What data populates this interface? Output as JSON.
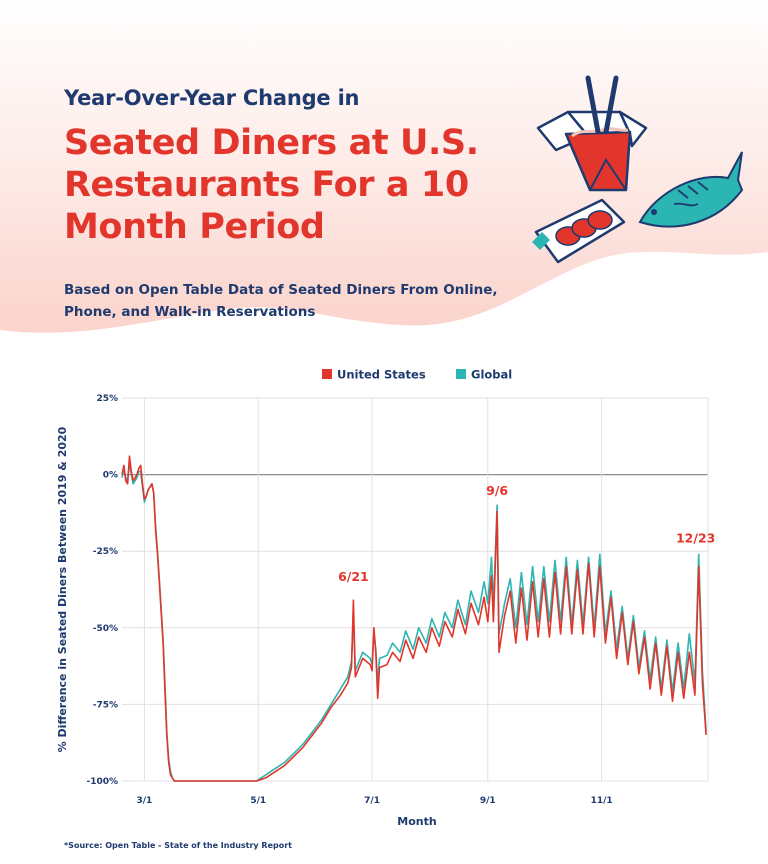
{
  "header": {
    "kicker": "Year-Over-Year Change in",
    "title": "Seated Diners at U.S. Restaurants For a 10 Month Period",
    "subtitle": "Based on Open Table Data of Seated Diners From Online, Phone, and Walk-in Reservations"
  },
  "source": "*Source: Open Table - State of the Industry Report",
  "illustration": {
    "icons": [
      "takeout-box-icon",
      "chopsticks-icon",
      "fish-icon",
      "sushi-plate-icon"
    ]
  },
  "colors": {
    "us": "#e2352b",
    "global": "#2bb5b3",
    "navy": "#1f3a6e",
    "wave": "#fde6e2"
  },
  "chart_data": {
    "type": "line",
    "xlabel": "Month",
    "ylabel": "% Difference in Seated Diners Between 2019 & 2020",
    "x_tick_labels": [
      "3/1",
      "5/1",
      "7/1",
      "9/1",
      "11/1"
    ],
    "y_tick_labels": [
      "25%",
      "0%",
      "-25%",
      "-50%",
      "-75%",
      "-100%"
    ],
    "y_ticks": [
      25,
      0,
      -25,
      -50,
      -75,
      -100
    ],
    "ylim": [
      -100,
      25
    ],
    "x_range": [
      "2020-02-18",
      "2020-12-28"
    ],
    "grid": true,
    "legend_position": "top-center",
    "series": [
      {
        "name": "United States",
        "points": [
          [
            "2020-02-18",
            0
          ],
          [
            "2020-02-19",
            3
          ],
          [
            "2020-02-20",
            -2
          ],
          [
            "2020-02-21",
            -3
          ],
          [
            "2020-02-22",
            6
          ],
          [
            "2020-02-23",
            1
          ],
          [
            "2020-02-24",
            -2
          ],
          [
            "2020-02-25",
            -1
          ],
          [
            "2020-02-26",
            0
          ],
          [
            "2020-02-27",
            2
          ],
          [
            "2020-02-28",
            3
          ],
          [
            "2020-02-29",
            -3
          ],
          [
            "2020-03-01",
            -8
          ],
          [
            "2020-03-02",
            -7
          ],
          [
            "2020-03-03",
            -5
          ],
          [
            "2020-03-04",
            -4
          ],
          [
            "2020-03-05",
            -3
          ],
          [
            "2020-03-06",
            -6
          ],
          [
            "2020-03-07",
            -18
          ],
          [
            "2020-03-08",
            -26
          ],
          [
            "2020-03-09",
            -35
          ],
          [
            "2020-03-10",
            -45
          ],
          [
            "2020-03-11",
            -55
          ],
          [
            "2020-03-12",
            -70
          ],
          [
            "2020-03-13",
            -85
          ],
          [
            "2020-03-14",
            -94
          ],
          [
            "2020-03-15",
            -98
          ],
          [
            "2020-03-16",
            -99
          ],
          [
            "2020-03-17",
            -100
          ],
          [
            "2020-04-30",
            -100
          ],
          [
            "2020-05-05",
            -99
          ],
          [
            "2020-05-10",
            -97
          ],
          [
            "2020-05-15",
            -95
          ],
          [
            "2020-05-20",
            -92
          ],
          [
            "2020-05-25",
            -89
          ],
          [
            "2020-05-30",
            -85
          ],
          [
            "2020-06-04",
            -81
          ],
          [
            "2020-06-09",
            -76
          ],
          [
            "2020-06-14",
            -72
          ],
          [
            "2020-06-18",
            -68
          ],
          [
            "2020-06-20",
            -63
          ],
          [
            "2020-06-21",
            -41
          ],
          [
            "2020-06-22",
            -66
          ],
          [
            "2020-06-26",
            -60
          ],
          [
            "2020-06-30",
            -62
          ],
          [
            "2020-07-01",
            -64
          ],
          [
            "2020-07-02",
            -50
          ],
          [
            "2020-07-03",
            -58
          ],
          [
            "2020-07-04",
            -73
          ],
          [
            "2020-07-05",
            -63
          ],
          [
            "2020-07-09",
            -62
          ],
          [
            "2020-07-12",
            -58
          ],
          [
            "2020-07-16",
            -61
          ],
          [
            "2020-07-19",
            -54
          ],
          [
            "2020-07-23",
            -60
          ],
          [
            "2020-07-26",
            -53
          ],
          [
            "2020-07-30",
            -58
          ],
          [
            "2020-08-02",
            -50
          ],
          [
            "2020-08-06",
            -56
          ],
          [
            "2020-08-09",
            -48
          ],
          [
            "2020-08-13",
            -53
          ],
          [
            "2020-08-16",
            -44
          ],
          [
            "2020-08-20",
            -52
          ],
          [
            "2020-08-23",
            -42
          ],
          [
            "2020-08-27",
            -49
          ],
          [
            "2020-08-30",
            -40
          ],
          [
            "2020-09-01",
            -48
          ],
          [
            "2020-09-03",
            -33
          ],
          [
            "2020-09-04",
            -48
          ],
          [
            "2020-09-06",
            -12
          ],
          [
            "2020-09-07",
            -58
          ],
          [
            "2020-09-10",
            -46
          ],
          [
            "2020-09-13",
            -38
          ],
          [
            "2020-09-16",
            -55
          ],
          [
            "2020-09-19",
            -37
          ],
          [
            "2020-09-22",
            -54
          ],
          [
            "2020-09-25",
            -35
          ],
          [
            "2020-09-28",
            -53
          ],
          [
            "2020-10-01",
            -34
          ],
          [
            "2020-10-04",
            -53
          ],
          [
            "2020-10-07",
            -32
          ],
          [
            "2020-10-10",
            -52
          ],
          [
            "2020-10-13",
            -30
          ],
          [
            "2020-10-16",
            -52
          ],
          [
            "2020-10-19",
            -31
          ],
          [
            "2020-10-22",
            -52
          ],
          [
            "2020-10-25",
            -29
          ],
          [
            "2020-10-28",
            -53
          ],
          [
            "2020-10-31",
            -30
          ],
          [
            "2020-11-03",
            -55
          ],
          [
            "2020-11-06",
            -40
          ],
          [
            "2020-11-09",
            -60
          ],
          [
            "2020-11-12",
            -45
          ],
          [
            "2020-11-15",
            -62
          ],
          [
            "2020-11-18",
            -48
          ],
          [
            "2020-11-21",
            -65
          ],
          [
            "2020-11-24",
            -53
          ],
          [
            "2020-11-27",
            -70
          ],
          [
            "2020-11-30",
            -55
          ],
          [
            "2020-12-03",
            -72
          ],
          [
            "2020-12-06",
            -56
          ],
          [
            "2020-12-09",
            -74
          ],
          [
            "2020-12-12",
            -58
          ],
          [
            "2020-12-15",
            -73
          ],
          [
            "2020-12-18",
            -58
          ],
          [
            "2020-12-21",
            -72
          ],
          [
            "2020-12-23",
            -30
          ],
          [
            "2020-12-25",
            -68
          ],
          [
            "2020-12-27",
            -85
          ]
        ]
      },
      {
        "name": "Global",
        "points": [
          [
            "2020-02-18",
            -1
          ],
          [
            "2020-02-19",
            2
          ],
          [
            "2020-02-20",
            -1
          ],
          [
            "2020-02-21",
            -2
          ],
          [
            "2020-02-22",
            4
          ],
          [
            "2020-02-23",
            0
          ],
          [
            "2020-02-24",
            -3
          ],
          [
            "2020-02-25",
            -2
          ],
          [
            "2020-02-26",
            -1
          ],
          [
            "2020-02-27",
            1
          ],
          [
            "2020-02-28",
            1
          ],
          [
            "2020-02-29",
            -4
          ],
          [
            "2020-03-01",
            -9
          ],
          [
            "2020-03-02",
            -7
          ],
          [
            "2020-03-03",
            -5
          ],
          [
            "2020-03-04",
            -4
          ],
          [
            "2020-03-05",
            -3
          ],
          [
            "2020-03-06",
            -6
          ],
          [
            "2020-03-07",
            -17
          ],
          [
            "2020-03-08",
            -25
          ],
          [
            "2020-03-09",
            -34
          ],
          [
            "2020-03-10",
            -44
          ],
          [
            "2020-03-11",
            -54
          ],
          [
            "2020-03-12",
            -68
          ],
          [
            "2020-03-13",
            -84
          ],
          [
            "2020-03-14",
            -93
          ],
          [
            "2020-03-15",
            -97
          ],
          [
            "2020-03-16",
            -99
          ],
          [
            "2020-03-17",
            -100
          ],
          [
            "2020-04-30",
            -100
          ],
          [
            "2020-05-05",
            -98
          ],
          [
            "2020-05-10",
            -96
          ],
          [
            "2020-05-15",
            -94
          ],
          [
            "2020-05-20",
            -91
          ],
          [
            "2020-05-25",
            -88
          ],
          [
            "2020-05-30",
            -84
          ],
          [
            "2020-06-04",
            -80
          ],
          [
            "2020-06-09",
            -75
          ],
          [
            "2020-06-14",
            -70
          ],
          [
            "2020-06-18",
            -66
          ],
          [
            "2020-06-20",
            -61
          ],
          [
            "2020-06-21",
            -46
          ],
          [
            "2020-06-22",
            -64
          ],
          [
            "2020-06-26",
            -58
          ],
          [
            "2020-06-30",
            -60
          ],
          [
            "2020-07-01",
            -62
          ],
          [
            "2020-07-02",
            -52
          ],
          [
            "2020-07-03",
            -57
          ],
          [
            "2020-07-04",
            -68
          ],
          [
            "2020-07-05",
            -60
          ],
          [
            "2020-07-09",
            -59
          ],
          [
            "2020-07-12",
            -55
          ],
          [
            "2020-07-16",
            -58
          ],
          [
            "2020-07-19",
            -51
          ],
          [
            "2020-07-23",
            -57
          ],
          [
            "2020-07-26",
            -50
          ],
          [
            "2020-07-30",
            -55
          ],
          [
            "2020-08-02",
            -47
          ],
          [
            "2020-08-06",
            -53
          ],
          [
            "2020-08-09",
            -45
          ],
          [
            "2020-08-13",
            -50
          ],
          [
            "2020-08-16",
            -41
          ],
          [
            "2020-08-20",
            -49
          ],
          [
            "2020-08-23",
            -38
          ],
          [
            "2020-08-27",
            -45
          ],
          [
            "2020-08-30",
            -35
          ],
          [
            "2020-09-01",
            -42
          ],
          [
            "2020-09-03",
            -27
          ],
          [
            "2020-09-04",
            -43
          ],
          [
            "2020-09-06",
            -10
          ],
          [
            "2020-09-07",
            -52
          ],
          [
            "2020-09-10",
            -42
          ],
          [
            "2020-09-13",
            -34
          ],
          [
            "2020-09-16",
            -50
          ],
          [
            "2020-09-19",
            -32
          ],
          [
            "2020-09-22",
            -49
          ],
          [
            "2020-09-25",
            -30
          ],
          [
            "2020-09-28",
            -48
          ],
          [
            "2020-10-01",
            -30
          ],
          [
            "2020-10-04",
            -48
          ],
          [
            "2020-10-07",
            -28
          ],
          [
            "2020-10-10",
            -48
          ],
          [
            "2020-10-13",
            -27
          ],
          [
            "2020-10-16",
            -49
          ],
          [
            "2020-10-19",
            -28
          ],
          [
            "2020-10-22",
            -49
          ],
          [
            "2020-10-25",
            -27
          ],
          [
            "2020-10-28",
            -50
          ],
          [
            "2020-10-31",
            -26
          ],
          [
            "2020-11-03",
            -52
          ],
          [
            "2020-11-06",
            -38
          ],
          [
            "2020-11-09",
            -57
          ],
          [
            "2020-11-12",
            -43
          ],
          [
            "2020-11-15",
            -60
          ],
          [
            "2020-11-18",
            -46
          ],
          [
            "2020-11-21",
            -63
          ],
          [
            "2020-11-24",
            -51
          ],
          [
            "2020-11-27",
            -67
          ],
          [
            "2020-11-30",
            -53
          ],
          [
            "2020-12-03",
            -70
          ],
          [
            "2020-12-06",
            -54
          ],
          [
            "2020-12-09",
            -71
          ],
          [
            "2020-12-12",
            -55
          ],
          [
            "2020-12-15",
            -70
          ],
          [
            "2020-12-18",
            -52
          ],
          [
            "2020-12-21",
            -68
          ],
          [
            "2020-12-23",
            -26
          ],
          [
            "2020-12-25",
            -64
          ],
          [
            "2020-12-27",
            -84
          ]
        ]
      }
    ],
    "annotations": [
      {
        "label": "6/21",
        "x": "2020-06-21",
        "y": -41
      },
      {
        "label": "9/6",
        "x": "2020-09-06",
        "y": -10
      },
      {
        "label": "12/23",
        "x": "2020-12-23",
        "y": -26
      }
    ]
  }
}
